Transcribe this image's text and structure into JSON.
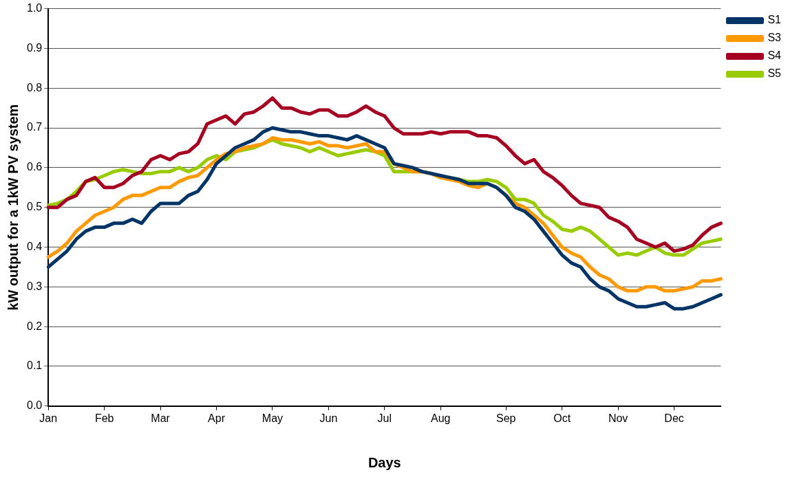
{
  "chart_data": {
    "type": "line",
    "xlabel": "Days",
    "ylabel": "kW output for a 1kW PV system",
    "categories": [
      "Jan",
      null,
      null,
      null,
      null,
      null,
      "Feb",
      null,
      null,
      null,
      null,
      null,
      "Mar",
      null,
      null,
      null,
      null,
      null,
      "Apr",
      null,
      null,
      null,
      null,
      null,
      "May",
      null,
      null,
      null,
      null,
      null,
      "Jun",
      null,
      null,
      null,
      null,
      null,
      "Jul",
      null,
      null,
      null,
      null,
      null,
      "Aug",
      null,
      null,
      null,
      null,
      null,
      null,
      "Sep",
      null,
      null,
      null,
      null,
      null,
      "Oct",
      null,
      null,
      null,
      null,
      null,
      "Nov",
      null,
      null,
      null,
      null,
      null,
      "Dec",
      null,
      null,
      null,
      null,
      null
    ],
    "ylim": [
      0,
      1
    ],
    "yticks": [
      {
        "value": 0,
        "label": "0.0"
      },
      0.1,
      0.2,
      0.3,
      0.4,
      0.5,
      0.6,
      0.7,
      0.8,
      0.9,
      {
        "value": 1,
        "label": "1.0"
      }
    ],
    "grid": "y",
    "legend": "top right",
    "marker": "none",
    "line_style": "solid",
    "series": [
      {
        "name": "S1",
        "color": "#003366",
        "values": [
          0.35,
          0.37,
          0.39,
          0.42,
          0.44,
          0.45,
          0.45,
          0.46,
          0.46,
          0.47,
          0.46,
          0.49,
          0.51,
          0.51,
          0.51,
          0.53,
          0.54,
          0.57,
          0.61,
          0.63,
          0.65,
          0.66,
          0.67,
          0.69,
          0.7,
          0.695,
          0.69,
          0.69,
          0.685,
          0.68,
          0.68,
          0.675,
          0.67,
          0.68,
          0.67,
          0.66,
          0.65,
          0.61,
          0.605,
          0.6,
          0.59,
          0.585,
          0.58,
          0.575,
          0.57,
          0.56,
          0.56,
          0.56,
          0.55,
          0.53,
          0.5,
          0.49,
          0.47,
          0.44,
          0.41,
          0.38,
          0.36,
          0.35,
          0.32,
          0.3,
          0.29,
          0.27,
          0.26,
          0.25,
          0.25,
          0.255,
          0.26,
          0.245,
          0.245,
          0.25,
          0.26,
          0.27,
          0.28
        ]
      },
      {
        "name": "S3",
        "color": "#ff9900",
        "values": [
          0.375,
          0.39,
          0.41,
          0.44,
          0.46,
          0.48,
          0.49,
          0.5,
          0.52,
          0.53,
          0.53,
          0.54,
          0.55,
          0.55,
          0.565,
          0.575,
          0.58,
          0.6,
          0.62,
          0.635,
          0.64,
          0.65,
          0.655,
          0.66,
          0.675,
          0.67,
          0.67,
          0.665,
          0.66,
          0.665,
          0.655,
          0.655,
          0.65,
          0.655,
          0.66,
          0.64,
          0.64,
          0.61,
          0.6,
          0.59,
          0.59,
          0.585,
          0.575,
          0.57,
          0.565,
          0.555,
          0.55,
          0.56,
          0.55,
          0.53,
          0.51,
          0.5,
          0.48,
          0.46,
          0.43,
          0.4,
          0.385,
          0.375,
          0.35,
          0.33,
          0.32,
          0.3,
          0.29,
          0.29,
          0.3,
          0.3,
          0.29,
          0.29,
          0.295,
          0.3,
          0.315,
          0.315,
          0.32
        ]
      },
      {
        "name": "S4",
        "color": "#a50021",
        "values": [
          0.5,
          0.5,
          0.52,
          0.53,
          0.565,
          0.575,
          0.55,
          0.55,
          0.56,
          0.58,
          0.59,
          0.62,
          0.63,
          0.62,
          0.635,
          0.64,
          0.66,
          0.71,
          0.72,
          0.73,
          0.71,
          0.735,
          0.74,
          0.755,
          0.775,
          0.75,
          0.75,
          0.74,
          0.735,
          0.745,
          0.745,
          0.73,
          0.73,
          0.74,
          0.755,
          0.74,
          0.73,
          0.7,
          0.685,
          0.685,
          0.685,
          0.69,
          0.685,
          0.69,
          0.69,
          0.69,
          0.68,
          0.68,
          0.675,
          0.655,
          0.63,
          0.61,
          0.62,
          0.59,
          0.575,
          0.555,
          0.53,
          0.51,
          0.505,
          0.5,
          0.475,
          0.465,
          0.45,
          0.42,
          0.41,
          0.4,
          0.41,
          0.39,
          0.395,
          0.405,
          0.43,
          0.45,
          0.46
        ]
      },
      {
        "name": "S5",
        "color": "#99cc00",
        "values": [
          0.505,
          0.51,
          0.52,
          0.54,
          0.565,
          0.57,
          0.58,
          0.59,
          0.595,
          0.59,
          0.585,
          0.585,
          0.59,
          0.59,
          0.6,
          0.59,
          0.6,
          0.62,
          0.63,
          0.62,
          0.64,
          0.645,
          0.65,
          0.66,
          0.67,
          0.66,
          0.655,
          0.65,
          0.64,
          0.65,
          0.64,
          0.63,
          0.635,
          0.64,
          0.645,
          0.64,
          0.63,
          0.59,
          0.59,
          0.59,
          0.59,
          0.585,
          0.575,
          0.575,
          0.57,
          0.565,
          0.565,
          0.57,
          0.565,
          0.55,
          0.52,
          0.52,
          0.51,
          0.48,
          0.465,
          0.445,
          0.44,
          0.45,
          0.44,
          0.42,
          0.4,
          0.38,
          0.385,
          0.38,
          0.39,
          0.4,
          0.385,
          0.38,
          0.38,
          0.395,
          0.41,
          0.415,
          0.42
        ]
      }
    ]
  }
}
